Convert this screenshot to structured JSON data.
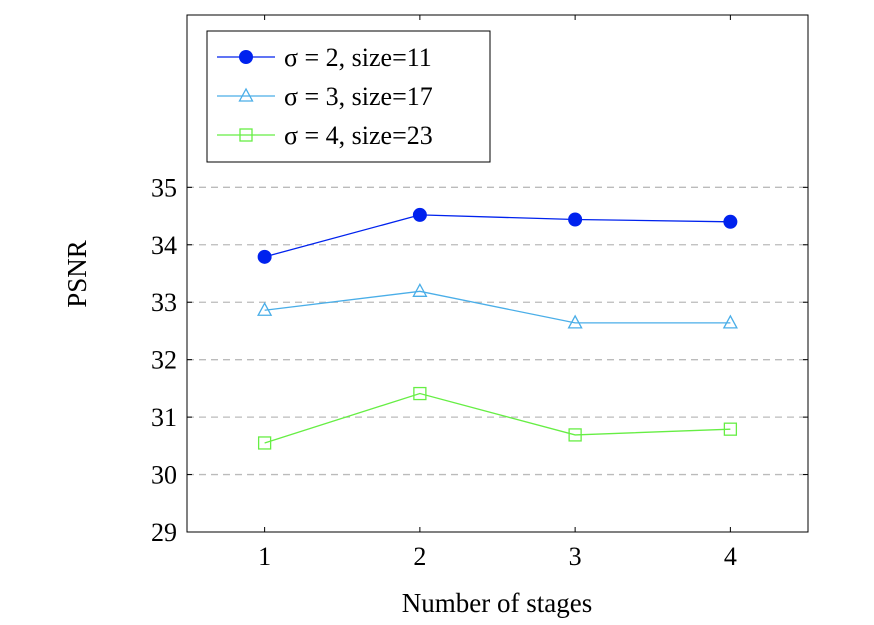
{
  "chart_data": {
    "type": "line",
    "title": "",
    "xlabel": "Number of stages",
    "ylabel": "PSNR",
    "xlim": [
      0.5,
      4.5
    ],
    "ylim": [
      29,
      38
    ],
    "xticks": [
      1,
      2,
      3,
      4
    ],
    "yticks": [
      29,
      30,
      31,
      32,
      33,
      34,
      35
    ],
    "grid": "horizontal dashed",
    "legend_position": "top-left",
    "x": [
      1,
      2,
      3,
      4
    ],
    "series": [
      {
        "name": "σ = 2, size=11",
        "values": [
          33.79,
          34.52,
          34.44,
          34.4
        ],
        "color": "#0022ee",
        "marker": "filled-circle"
      },
      {
        "name": "σ = 3, size=17",
        "values": [
          32.86,
          33.19,
          32.64,
          32.64
        ],
        "color": "#4aaee8",
        "marker": "open-triangle"
      },
      {
        "name": "σ = 4, size=23",
        "values": [
          30.55,
          31.41,
          30.69,
          30.79
        ],
        "color": "#66ee44",
        "marker": "open-square"
      }
    ]
  }
}
